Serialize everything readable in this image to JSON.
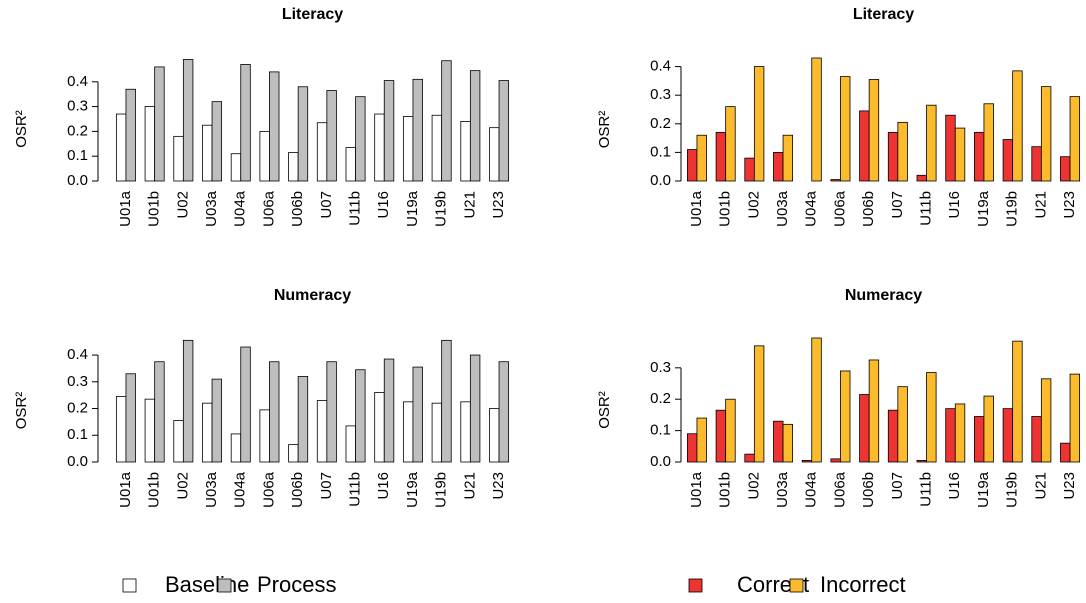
{
  "chart_data": [
    {
      "type": "bar",
      "title": "Literacy",
      "ylabel": "OSR²",
      "categories": [
        "U01a",
        "U01b",
        "U02",
        "U03a",
        "U04a",
        "U06a",
        "U06b",
        "U07",
        "U11b",
        "U16",
        "U19a",
        "U19b",
        "U21",
        "U23"
      ],
      "ylim": [
        0,
        0.5
      ],
      "yticks": [
        {
          "value": 0,
          "label": "0.0"
        },
        0.1,
        0.2,
        0.3,
        0.4
      ],
      "series": [
        {
          "color": "#ffffff",
          "values": [
            0.27,
            0.3,
            0.18,
            0.225,
            0.11,
            0.2,
            0.115,
            0.235,
            0.135,
            0.27,
            0.26,
            0.265,
            0.24,
            0.215
          ]
        },
        {
          "color": "#bebebe",
          "values": [
            0.37,
            0.46,
            0.49,
            0.32,
            0.47,
            0.44,
            0.38,
            0.365,
            0.34,
            0.405,
            0.41,
            0.485,
            0.445,
            0.405
          ]
        }
      ]
    },
    {
      "type": "bar",
      "title": "Literacy",
      "ylabel": "OSR²",
      "categories": [
        "U01a",
        "U01b",
        "U02",
        "U03a",
        "U04a",
        "U06a",
        "U06b",
        "U07",
        "U11b",
        "U16",
        "U19a",
        "U19b",
        "U21",
        "U23"
      ],
      "ylim": [
        0,
        0.43
      ],
      "yticks": [
        {
          "value": 0,
          "label": "0.0"
        },
        0.1,
        0.2,
        0.3,
        0.4
      ],
      "series": [
        {
          "color": "#ee3333",
          "values": [
            0.11,
            0.17,
            0.08,
            0.1,
            0.0,
            0.005,
            0.245,
            0.17,
            0.02,
            0.23,
            0.17,
            0.145,
            0.12,
            0.085
          ]
        },
        {
          "color": "#fbbb2c",
          "values": [
            0.16,
            0.26,
            0.4,
            0.16,
            0.43,
            0.365,
            0.355,
            0.205,
            0.265,
            0.185,
            0.27,
            0.385,
            0.33,
            0.295
          ]
        }
      ]
    },
    {
      "type": "bar",
      "title": "Numeracy",
      "ylabel": "OSR²",
      "categories": [
        "U01a",
        "U01b",
        "U02",
        "U03a",
        "U04a",
        "U06a",
        "U06b",
        "U07",
        "U11b",
        "U16",
        "U19a",
        "U19b",
        "U21",
        "U23"
      ],
      "ylim": [
        0,
        0.46
      ],
      "yticks": [
        {
          "value": 0,
          "label": "0.0"
        },
        0.1,
        0.2,
        0.3,
        0.4
      ],
      "series": [
        {
          "color": "#ffffff",
          "values": [
            0.245,
            0.235,
            0.155,
            0.22,
            0.105,
            0.195,
            0.065,
            0.23,
            0.135,
            0.26,
            0.225,
            0.22,
            0.225,
            0.2
          ]
        },
        {
          "color": "#bebebe",
          "values": [
            0.33,
            0.375,
            0.455,
            0.31,
            0.43,
            0.375,
            0.32,
            0.375,
            0.345,
            0.385,
            0.355,
            0.455,
            0.4,
            0.375
          ]
        }
      ]
    },
    {
      "type": "bar",
      "title": "Numeracy",
      "ylabel": "OSR²",
      "categories": [
        "U01a",
        "U01b",
        "U02",
        "U03a",
        "U04a",
        "U06a",
        "U06b",
        "U07",
        "U11b",
        "U16",
        "U19a",
        "U19b",
        "U21",
        "U23"
      ],
      "ylim": [
        0,
        0.395
      ],
      "yticks": [
        {
          "value": 0,
          "label": "0.0"
        },
        0.1,
        0.2,
        0.3
      ],
      "series": [
        {
          "color": "#ee3333",
          "values": [
            0.09,
            0.165,
            0.025,
            0.13,
            0.005,
            0.01,
            0.215,
            0.165,
            0.005,
            0.17,
            0.145,
            0.17,
            0.145,
            0.06
          ]
        },
        {
          "color": "#fbbb2c",
          "values": [
            0.14,
            0.2,
            0.37,
            0.12,
            0.395,
            0.29,
            0.325,
            0.24,
            0.285,
            0.185,
            0.21,
            0.385,
            0.265,
            0.28
          ]
        }
      ]
    }
  ],
  "legends": [
    {
      "entries": [
        {
          "name": "Baseline"
        },
        {
          "name": "Process"
        }
      ]
    },
    {
      "entries": [
        {
          "name": "Correct"
        },
        {
          "name": "Incorrect"
        }
      ]
    }
  ]
}
